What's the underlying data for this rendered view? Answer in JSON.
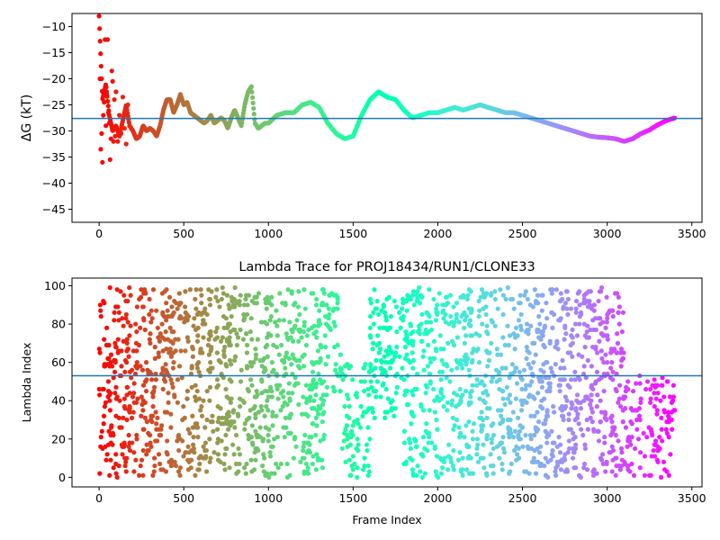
{
  "chart_data": [
    {
      "type": "scatter",
      "title": "",
      "xlabel": "",
      "ylabel": "ΔG (kT)",
      "xlim": [
        -160,
        3560
      ],
      "ylim": [
        -47.5,
        -7.5
      ],
      "xticks": [
        0,
        500,
        1000,
        1500,
        2000,
        2500,
        3000,
        3500
      ],
      "yticks": [
        -10,
        -15,
        -20,
        -25,
        -30,
        -35,
        -40,
        -45
      ],
      "hline": -27.6,
      "hline_color": "#1f77b4",
      "colormap": "rainbow",
      "n_frames": 3400,
      "grid": false,
      "legend": "none",
      "series": [
        {
          "x": [
            0,
            20,
            40,
            60,
            80,
            100,
            120,
            140,
            160,
            180,
            200,
            220,
            240,
            260,
            280,
            300,
            320,
            340,
            360,
            380,
            400,
            420,
            440,
            460,
            480,
            500,
            520,
            540,
            560,
            580,
            600,
            620,
            640,
            660,
            680,
            700,
            720,
            740,
            760,
            780,
            800,
            820,
            840,
            860,
            880,
            900,
            920,
            940,
            960,
            980,
            1000,
            1050,
            1100,
            1150,
            1200,
            1250,
            1300,
            1350,
            1400,
            1450,
            1500,
            1550,
            1600,
            1650,
            1700,
            1750,
            1800,
            1850,
            1900,
            1950,
            2000,
            2050,
            2100,
            2150,
            2200,
            2250,
            2300,
            2350,
            2400,
            2450,
            2500,
            2550,
            2600,
            2650,
            2700,
            2750,
            2800,
            2850,
            2900,
            2950,
            3000,
            3050,
            3100,
            3150,
            3200,
            3250,
            3300,
            3350,
            3400
          ],
          "y": [
            -8.0,
            -24.0,
            -21.0,
            -27.0,
            -30.0,
            -29.0,
            -31.0,
            -28.0,
            -25.0,
            -29.0,
            -30.0,
            -31.5,
            -31.0,
            -29.0,
            -30.0,
            -29.5,
            -30.0,
            -31.0,
            -29.0,
            -26.0,
            -24.0,
            -24.0,
            -26.5,
            -25.0,
            -23.0,
            -25.0,
            -24.5,
            -26.5,
            -27.0,
            -27.5,
            -28.0,
            -28.5,
            -28.0,
            -27.0,
            -28.5,
            -28.0,
            -27.5,
            -28.0,
            -29.5,
            -27.5,
            -26.0,
            -27.5,
            -29.0,
            -25.0,
            -22.5,
            -21.5,
            -28.5,
            -29.5,
            -29.0,
            -28.5,
            -28.5,
            -27.0,
            -26.5,
            -26.5,
            -25.0,
            -24.5,
            -25.5,
            -28.5,
            -30.5,
            -31.5,
            -31.0,
            -27.0,
            -24.0,
            -22.5,
            -23.5,
            -24.0,
            -26.0,
            -27.5,
            -27.0,
            -26.5,
            -26.5,
            -26.0,
            -25.5,
            -26.0,
            -25.5,
            -25.0,
            -25.5,
            -26.0,
            -26.5,
            -26.5,
            -27.0,
            -27.5,
            -28.0,
            -28.5,
            -29.0,
            -29.5,
            -30.0,
            -30.5,
            -31.0,
            -31.2,
            -31.3,
            -31.5,
            -32.0,
            -31.5,
            -30.5,
            -29.8,
            -28.8,
            -28.0,
            -27.5
          ]
        },
        {
          "x": [
            5,
            10,
            15,
            20,
            25,
            30,
            35,
            40,
            45,
            50,
            55,
            60,
            65,
            70,
            75,
            80,
            85,
            90,
            95,
            100,
            110,
            120,
            130,
            140,
            150,
            160,
            170
          ],
          "y": [
            -20.0,
            -33.5,
            -30.5,
            -36.0,
            -27.0,
            -24.5,
            -12.5,
            -29.0,
            -23.0,
            -12.5,
            -26.5,
            -28.5,
            -35.5,
            -31.5,
            -18.5,
            -20.5,
            -32.0,
            -24.0,
            -31.0,
            -22.5,
            -32.0,
            -27.0,
            -30.5,
            -23.5,
            -29.5,
            -32.5,
            -25.0
          ]
        }
      ]
    },
    {
      "type": "scatter",
      "title": "Lambda Trace for PROJ18434/RUN1/CLONE33",
      "xlabel": "Frame Index",
      "ylabel": "Lambda Index",
      "xlim": [
        -160,
        3560
      ],
      "ylim": [
        -5,
        104
      ],
      "xticks": [
        0,
        500,
        1000,
        1500,
        2000,
        2500,
        3000,
        3500
      ],
      "yticks": [
        0,
        20,
        40,
        60,
        80,
        100
      ],
      "hline": 53,
      "hline_color": "#1f77b4",
      "colormap": "rainbow",
      "n_frames": 3400,
      "lambda_range": [
        0,
        99
      ],
      "grid": false,
      "legend": "none",
      "segments": [
        {
          "x_range": [
            0,
            1330
          ],
          "y_range": [
            0,
            99
          ]
        },
        {
          "x_range": [
            1330,
            1430
          ],
          "y_range": [
            40,
            99
          ]
        },
        {
          "x_range": [
            1430,
            1600
          ],
          "y_range": [
            0,
            60
          ]
        },
        {
          "x_range": [
            1600,
            1800
          ],
          "y_range": [
            30,
            99
          ]
        },
        {
          "x_range": [
            1800,
            2300
          ],
          "y_range": [
            0,
            99
          ]
        },
        {
          "x_range": [
            2300,
            3100
          ],
          "y_range": [
            0,
            99
          ]
        },
        {
          "x_range": [
            3100,
            3400
          ],
          "y_range": [
            0,
            53
          ]
        }
      ]
    }
  ]
}
